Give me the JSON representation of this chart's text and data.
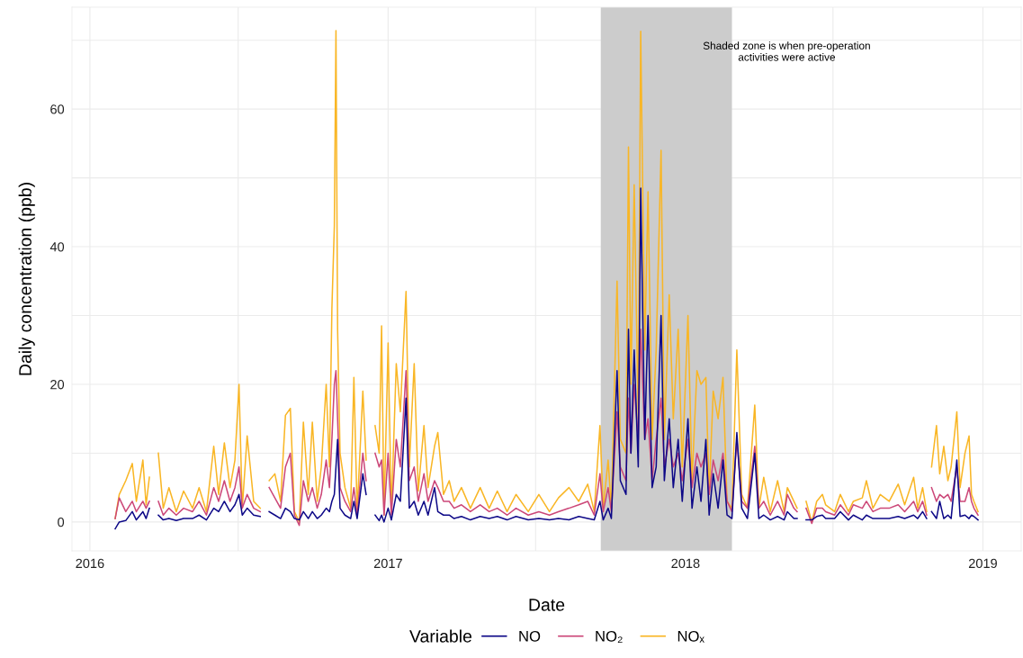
{
  "chart_data": {
    "type": "line",
    "xlabel": "Date",
    "ylabel": "Daily concentration (ppb)",
    "legend_title": "Variable",
    "legend": "bottom",
    "grid": true,
    "line_style": "solid",
    "marker": "none",
    "xlim": [
      "2015-12-10",
      "2019-02-17"
    ],
    "ylim": [
      -4.2,
      74.8
    ],
    "xticks": [
      "2016",
      {
        "value": "2016-07-01",
        "label": null
      },
      "2017",
      {
        "value": "2017-07-01",
        "label": null
      },
      "2018",
      {
        "value": "2018-07-01",
        "label": null
      },
      "2019"
    ],
    "yticks": [
      0,
      {
        "value": 10,
        "label": null
      },
      20,
      {
        "value": 30,
        "label": null
      },
      40,
      {
        "value": 50,
        "label": null
      },
      60,
      {
        "value": 70,
        "label": null
      }
    ],
    "bands": [
      {
        "axis": "x",
        "from": "2017-09-19",
        "to": "2018-02-27",
        "color": "#cccccc"
      }
    ],
    "annotations": [
      "Shaded zone is when pre-operation\nactivities were active"
    ],
    "x": [
      "2016-02-01",
      "2016-02-06",
      "2016-02-14",
      "2016-02-22",
      "2016-02-27",
      "2016-03-06",
      "2016-03-10",
      "2016-03-14",
      "2016-03-18",
      "2016-03-25",
      "2016-03-31",
      "2016-04-07",
      "2016-04-16",
      "2016-04-25",
      "2016-05-06",
      "2016-05-14",
      "2016-05-23",
      "2016-06-01",
      "2016-06-07",
      "2016-06-14",
      "2016-06-21",
      "2016-06-27",
      "2016-07-02",
      "2016-07-06",
      "2016-07-12",
      "2016-07-20",
      "2016-07-28",
      "2016-08-03",
      "2016-08-08",
      "2016-08-15",
      "2016-08-22",
      "2016-08-28",
      "2016-09-03",
      "2016-09-08",
      "2016-09-14",
      "2016-09-19",
      "2016-09-25",
      "2016-09-30",
      "2016-10-06",
      "2016-10-11",
      "2016-10-17",
      "2016-10-21",
      "2016-10-24",
      "2016-10-27",
      "2016-10-29",
      "2016-10-31",
      "2016-11-03",
      "2016-11-09",
      "2016-11-16",
      "2016-11-20",
      "2016-11-24",
      "2016-12-01",
      "2016-12-05",
      "2016-12-11",
      "2016-12-16",
      "2016-12-21",
      "2016-12-24",
      "2016-12-27",
      "2017-01-01",
      "2017-01-05",
      "2017-01-11",
      "2017-01-16",
      "2017-01-23",
      "2017-01-27",
      "2017-02-02",
      "2017-02-07",
      "2017-02-14",
      "2017-02-19",
      "2017-02-27",
      "2017-03-03",
      "2017-03-10",
      "2017-03-17",
      "2017-03-23",
      "2017-04-01",
      "2017-04-12",
      "2017-04-24",
      "2017-05-05",
      "2017-05-15",
      "2017-05-27",
      "2017-06-07",
      "2017-06-22",
      "2017-07-05",
      "2017-07-18",
      "2017-07-29",
      "2017-08-11",
      "2017-08-23",
      "2017-09-03",
      "2017-09-11",
      "2017-09-18",
      "2017-09-22",
      "2017-09-28",
      "2017-10-02",
      "2017-10-09",
      "2017-10-13",
      "2017-10-20",
      "2017-10-23",
      "2017-10-26",
      "2017-10-30",
      "2017-11-04",
      "2017-11-07",
      "2017-11-12",
      "2017-11-16",
      "2017-11-21",
      "2017-11-26",
      "2017-12-02",
      "2017-12-06",
      "2017-12-12",
      "2017-12-17",
      "2017-12-23",
      "2017-12-28",
      "2018-01-04",
      "2018-01-09",
      "2018-01-15",
      "2018-01-20",
      "2018-01-26",
      "2018-01-30",
      "2018-02-04",
      "2018-02-10",
      "2018-02-16",
      "2018-02-21",
      "2018-02-27",
      "2018-03-05",
      "2018-03-11",
      "2018-03-18",
      "2018-03-27",
      "2018-04-01",
      "2018-04-07",
      "2018-04-15",
      "2018-04-24",
      "2018-05-02",
      "2018-05-06",
      "2018-05-14",
      "2018-05-18",
      "2018-05-24",
      "2018-05-29",
      "2018-06-05",
      "2018-06-11",
      "2018-06-18",
      "2018-06-22",
      "2018-07-03",
      "2018-07-10",
      "2018-07-20",
      "2018-07-26",
      "2018-08-06",
      "2018-08-11",
      "2018-08-19",
      "2018-08-28",
      "2018-09-08",
      "2018-09-19",
      "2018-09-27",
      "2018-10-08",
      "2018-10-13",
      "2018-10-19",
      "2018-10-24",
      "2018-10-27",
      "2018-10-30",
      "2018-11-05",
      "2018-11-09",
      "2018-11-14",
      "2018-11-19",
      "2018-11-23",
      "2018-11-30",
      "2018-12-04",
      "2018-12-10",
      "2018-12-15",
      "2018-12-18",
      "2018-12-21",
      "2018-12-26"
    ],
    "series": [
      {
        "name": "NO",
        "color": "#0d0887",
        "values": [
          -1,
          0,
          0.2,
          1.5,
          0.3,
          1.5,
          0.5,
          2,
          null,
          1,
          0.3,
          0.5,
          0.2,
          0.5,
          0.5,
          1,
          0.3,
          2,
          1.5,
          3,
          1.5,
          2.5,
          4,
          1,
          2,
          1,
          0.8,
          null,
          1.5,
          1,
          0.5,
          2,
          1.5,
          0.5,
          0.3,
          1.5,
          0.5,
          1.5,
          0.5,
          1,
          2,
          1.5,
          3,
          4,
          8,
          12,
          2,
          1,
          0.5,
          3,
          0.5,
          7,
          4,
          null,
          1,
          0.2,
          1,
          0,
          2,
          0.3,
          4,
          3,
          18,
          2,
          3,
          1,
          3,
          1,
          5,
          1.5,
          1,
          1,
          0.5,
          0.8,
          0.3,
          0.8,
          0.5,
          0.8,
          0.3,
          0.8,
          0.3,
          0.5,
          0.3,
          0.5,
          0.3,
          0.8,
          0.5,
          0.3,
          3,
          0.3,
          2,
          0.5,
          22,
          6,
          4,
          28,
          10,
          25,
          8,
          48.5,
          12,
          30,
          5,
          8,
          30,
          6,
          15,
          5,
          12,
          3,
          15,
          2,
          8,
          3,
          12,
          1,
          7,
          2,
          9,
          1,
          0.5,
          13,
          2,
          0.5,
          10,
          0.5,
          1,
          0.3,
          0.8,
          0.3,
          1.5,
          0.5,
          0.5,
          null,
          0.3,
          0.3,
          0.8,
          1,
          0.5,
          0.5,
          1.5,
          0.3,
          1,
          0.3,
          1,
          0.5,
          0.5,
          0.5,
          0.8,
          0.5,
          1,
          0.5,
          1.5,
          0.5,
          null,
          1.5,
          0.5,
          3,
          0.5,
          1,
          0.5,
          9,
          0.8,
          1,
          0.5,
          1,
          0.8,
          0.3
        ]
      },
      {
        "name": "NO₂",
        "color": "#cc4778",
        "values": [
          0.5,
          3.5,
          1.5,
          3,
          1.5,
          3,
          2,
          3,
          null,
          3,
          1,
          2,
          1,
          2,
          1.5,
          3,
          1,
          5,
          3,
          6,
          3,
          5,
          8,
          2,
          4,
          2,
          1.5,
          null,
          5,
          3.5,
          2,
          8,
          10,
          1,
          -0.5,
          6,
          3,
          5,
          2,
          4,
          9,
          5,
          12,
          20,
          22,
          15,
          5,
          3,
          1.5,
          5,
          1,
          10,
          6,
          null,
          10,
          8,
          9,
          1,
          10,
          1,
          12,
          8,
          22,
          6,
          8,
          3,
          7,
          3,
          6,
          5,
          3,
          3,
          2,
          2.5,
          1.5,
          2.5,
          1.5,
          2,
          1,
          2,
          1,
          1.5,
          1,
          1.5,
          2,
          2.5,
          3,
          1,
          7,
          1.5,
          5,
          1.5,
          16,
          8,
          6,
          18,
          10,
          20,
          12,
          28,
          12,
          15,
          6,
          12,
          18,
          8,
          12,
          8,
          10,
          6,
          12,
          5,
          10,
          8,
          10,
          4,
          9,
          6,
          10,
          3,
          1.5,
          12,
          3,
          2,
          11,
          2,
          3,
          1,
          3,
          1,
          4,
          2,
          1.5,
          null,
          2,
          -0.2,
          2,
          2,
          1.5,
          1,
          2.5,
          1,
          2.5,
          2,
          3,
          1.5,
          2,
          2,
          2.5,
          1.5,
          3,
          1.5,
          3,
          1,
          null,
          5,
          3,
          4,
          3.5,
          4,
          3,
          8,
          3,
          3,
          5,
          3,
          2,
          1
        ]
      },
      {
        "name": "NOₓ",
        "color": "#f9b625",
        "values": [
          0.5,
          4,
          6,
          8.5,
          3,
          9,
          2.5,
          6.5,
          null,
          10,
          2,
          5,
          1.5,
          4.5,
          2,
          5,
          1.5,
          11,
          4,
          11.5,
          5,
          9,
          20,
          2,
          12.5,
          3,
          2,
          null,
          6,
          7,
          3,
          15.5,
          16.5,
          1.5,
          0,
          14.5,
          4,
          14.5,
          3,
          8,
          20,
          8,
          31,
          43,
          71.4,
          28,
          10,
          5,
          2,
          21,
          1.5,
          19,
          9,
          null,
          14,
          10,
          28.5,
          1,
          26,
          1.5,
          23,
          16,
          33.5,
          8,
          23,
          4.5,
          14,
          5,
          11,
          13,
          4,
          6,
          3,
          5,
          2,
          5,
          2,
          4.5,
          1.5,
          4,
          1.5,
          4,
          1.5,
          3.5,
          5,
          3,
          5.5,
          1.5,
          14,
          2,
          9,
          2,
          35,
          12,
          10,
          54.5,
          20,
          49,
          15,
          71.3,
          25,
          48,
          12,
          25,
          54,
          12,
          33,
          15,
          28,
          8,
          30,
          6,
          22,
          20,
          21,
          4,
          19,
          15,
          21,
          3,
          2,
          25,
          4,
          2,
          17,
          2,
          6.5,
          1.5,
          6,
          1.5,
          5,
          3,
          2,
          null,
          3,
          0,
          3,
          4,
          2.5,
          1.5,
          4,
          1.5,
          3,
          3.5,
          6,
          2,
          4,
          3,
          5.5,
          2.5,
          6.5,
          2,
          5,
          1.5,
          null,
          8,
          14,
          7,
          11,
          6,
          8,
          16,
          5,
          10,
          12.5,
          4,
          3,
          1.5
        ]
      }
    ]
  }
}
